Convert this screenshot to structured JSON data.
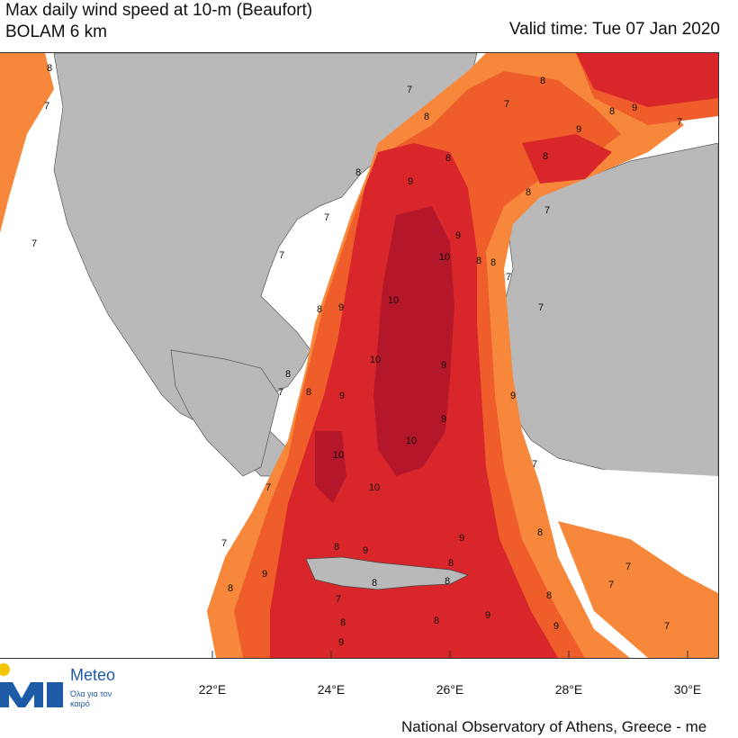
{
  "header": {
    "title_line1": "Max daily wind speed at 10-m (Beaufort)",
    "title_line2": "BOLAM 6 km",
    "valid_time": "Valid time: Tue 07 Jan 2020"
  },
  "axis": {
    "longitude_labels": [
      "22°E",
      "24°E",
      "26°E",
      "28°E",
      "30°E"
    ]
  },
  "contour_labels": [
    "7",
    "8",
    "9",
    "10"
  ],
  "logo": {
    "name": "Meteo",
    "tagline": "Όλα για τον καιρό"
  },
  "footer": {
    "credit": "National Observatory of Athens, Greece - me"
  },
  "colors": {
    "beaufort_7": "#f7883b",
    "beaufort_8": "#ef5d2b",
    "beaufort_9": "#d9262a",
    "beaufort_10": "#b5172a",
    "land": "#b9b9b9",
    "sea": "#ffffff",
    "logo_blue": "#1f5aa6"
  }
}
